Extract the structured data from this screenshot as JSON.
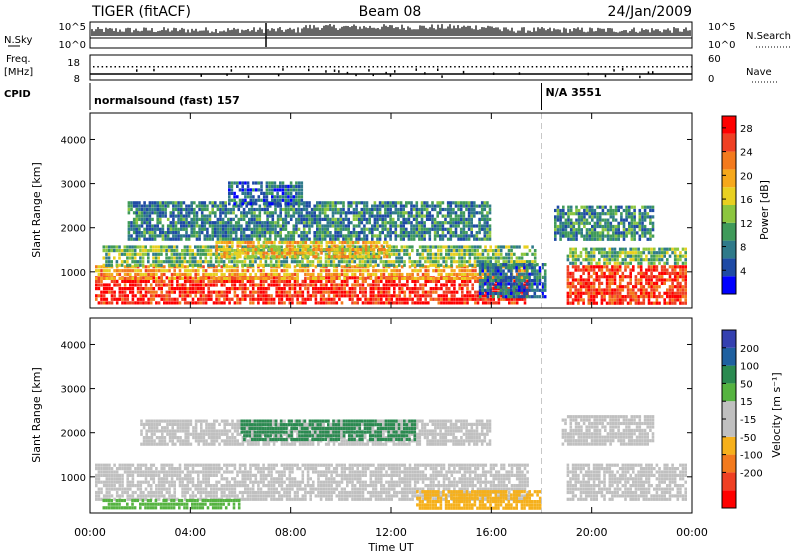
{
  "header": {
    "radar": "TIGER (fitACF)",
    "beam": "Beam 08",
    "date": "24/Jan/2009"
  },
  "top_panels": {
    "nsky_label": "N.Sky",
    "nsky_ticks": [
      "10^5",
      "10^0"
    ],
    "nsearch_label": "N.Search",
    "nsearch_ticks": [
      "10^5",
      "10^0"
    ],
    "freq_label": "Freq.",
    "freq_unit": "[MHz]",
    "freq_ticks": [
      "18",
      "8"
    ],
    "nave_label": "Nave",
    "nave_ticks": [
      "60",
      "0"
    ],
    "cpid_label": "CPID",
    "cpid_segments": [
      {
        "label": "normalsound (fast) 157",
        "start_hour": 0,
        "end_hour": 18
      },
      {
        "label": "N/A 3551",
        "start_hour": 18,
        "end_hour": 24
      }
    ]
  },
  "chart_data": [
    {
      "type": "heatmap",
      "title": "Power",
      "xlabel": "Time UT",
      "ylabel": "Slant Range [km]",
      "x_ticks": [
        "00:00",
        "04:00",
        "08:00",
        "12:00",
        "16:00",
        "20:00",
        "00:00"
      ],
      "xlim_hours": [
        0,
        24
      ],
      "y_ticks": [
        1000,
        2000,
        3000,
        4000
      ],
      "ylim": [
        180,
        4600
      ],
      "colorbar": {
        "label": "Power [dB]",
        "ticks": [
          4,
          8,
          12,
          16,
          20,
          24,
          28
        ],
        "range": [
          0,
          30
        ],
        "colors": [
          "#0000ff",
          "#1e4aa5",
          "#2f7a8a",
          "#3f9a5a",
          "#8cc63f",
          "#e8d020",
          "#f6a81b",
          "#f37a1d",
          "#ef4023",
          "#ff0000"
        ]
      },
      "echo_regions": [
        {
          "t0": 0.2,
          "t1": 17.5,
          "r0": 250,
          "r1": 900,
          "value": 27
        },
        {
          "t0": 0.2,
          "t1": 17.5,
          "r0": 800,
          "r1": 1150,
          "value": 20
        },
        {
          "t0": 0.5,
          "t1": 17.8,
          "r0": 1100,
          "r1": 1600,
          "value": 12
        },
        {
          "t0": 5.0,
          "t1": 12.0,
          "r0": 1300,
          "r1": 1700,
          "value": 18
        },
        {
          "t0": 1.5,
          "t1": 16.0,
          "r0": 1700,
          "r1": 2600,
          "value": 8
        },
        {
          "t0": 5.5,
          "t1": 8.5,
          "r0": 2500,
          "r1": 3050,
          "value": 6
        },
        {
          "t0": 15.5,
          "t1": 18.2,
          "r0": 400,
          "r1": 1200,
          "value": 7
        },
        {
          "t0": 19.0,
          "t1": 23.8,
          "r0": 250,
          "r1": 1150,
          "value": 26
        },
        {
          "t0": 19.0,
          "t1": 23.8,
          "r0": 1150,
          "r1": 1550,
          "value": 12
        },
        {
          "t0": 18.5,
          "t1": 22.5,
          "r0": 1700,
          "r1": 2500,
          "value": 9
        }
      ]
    },
    {
      "type": "heatmap",
      "title": "Velocity",
      "xlabel": "Time UT",
      "ylabel": "Slant Range [km]",
      "x_ticks": [
        "00:00",
        "04:00",
        "08:00",
        "12:00",
        "16:00",
        "20:00",
        "00:00"
      ],
      "xlim_hours": [
        0,
        24
      ],
      "y_ticks": [
        1000,
        2000,
        3000,
        4000
      ],
      "ylim": [
        180,
        4600
      ],
      "colorbar": {
        "label": "Velocity [m s⁻¹]",
        "ticks": [
          "200",
          "100",
          "50",
          "15",
          "-15",
          "-50",
          "-100",
          "-200"
        ],
        "colors": [
          "#3440b0",
          "#1e60a0",
          "#2a8a50",
          "#55b340",
          "#c0c0c0",
          "#c0c0c0",
          "#f6b01b",
          "#f37a1d",
          "#ef4023",
          "#ff0000"
        ]
      },
      "echo_regions": [
        {
          "t0": 0.2,
          "t1": 17.5,
          "r0": 450,
          "r1": 1300,
          "value": 0
        },
        {
          "t0": 2.0,
          "t1": 16.0,
          "r0": 1700,
          "r1": 2300,
          "value": 0
        },
        {
          "t0": 6.0,
          "t1": 13.0,
          "r0": 1800,
          "r1": 2300,
          "value": 60
        },
        {
          "t0": 13.0,
          "t1": 18.0,
          "r0": 250,
          "r1": 700,
          "value": -60
        },
        {
          "t0": 0.5,
          "t1": 6.0,
          "r0": 250,
          "r1": 500,
          "value": 40
        },
        {
          "t0": 19.0,
          "t1": 23.8,
          "r0": 450,
          "r1": 1300,
          "value": 0
        },
        {
          "t0": 18.8,
          "t1": 22.5,
          "r0": 1700,
          "r1": 2400,
          "value": 0
        }
      ]
    }
  ]
}
